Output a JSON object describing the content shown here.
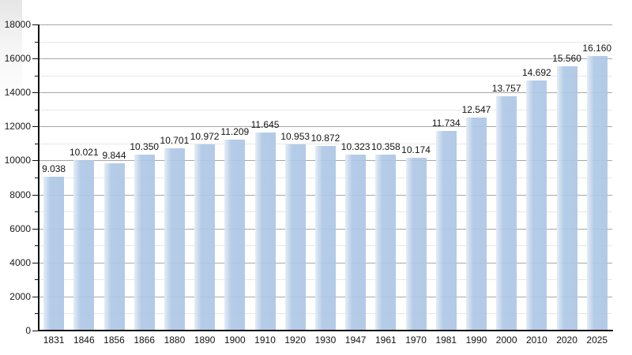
{
  "chart_data": {
    "type": "bar",
    "title": "",
    "xlabel": "",
    "ylabel": "",
    "categories": [
      "1831",
      "1846",
      "1856",
      "1866",
      "1880",
      "1890",
      "1900",
      "1910",
      "1920",
      "1930",
      "1947",
      "1961",
      "1970",
      "1981",
      "1990",
      "2000",
      "2010",
      "2020",
      "2025"
    ],
    "values": [
      9038,
      10021,
      9844,
      10350,
      10701,
      10972,
      11209,
      11645,
      10953,
      10872,
      10323,
      10358,
      10174,
      11734,
      12547,
      13757,
      14692,
      15560,
      16160
    ],
    "value_labels": [
      "9.038",
      "10.021",
      "9.844",
      "10.350",
      "10.701",
      "10.972",
      "11.209",
      "11.645",
      "10.953",
      "10.872",
      "10.323",
      "10.358",
      "10.174",
      "11.734",
      "12.547",
      "13.757",
      "14.692",
      "15.560",
      "16.160"
    ],
    "ylim": [
      0,
      18000
    ],
    "y_major_step": 2000,
    "y_minor_step": 1000,
    "y_tick_labels": [
      "0",
      "2000",
      "4000",
      "6000",
      "8000",
      "10000",
      "12000",
      "14000",
      "16000",
      "18000"
    ],
    "grid": "horizontal major+minor",
    "legend": "none",
    "colors": {
      "bar": "#adc6e2",
      "bar_highlight": "#e2ecf7",
      "grid_major": "#a7a7a7",
      "grid_minor": "#e7e7e7",
      "axis": "#111111",
      "text": "#141414",
      "background": "#ffffff"
    }
  }
}
